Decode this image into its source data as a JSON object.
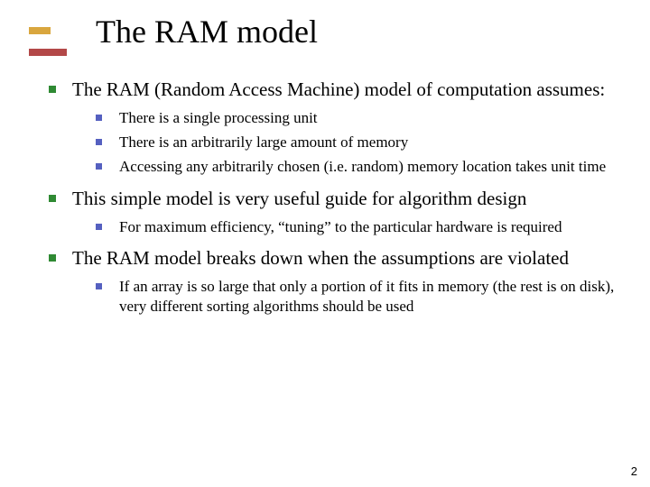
{
  "colors": {
    "bullet_lvl1": "#2f8a33",
    "bullet_lvl2": "#5560c0",
    "accent_bar1": "#d9a63e",
    "accent_bar2": "#b34848",
    "text": "#000000",
    "background": "#ffffff"
  },
  "typography": {
    "title_fontsize": 36,
    "lvl1_fontsize": 21,
    "lvl2_fontsize": 17,
    "font_family": "Times New Roman"
  },
  "title": "The RAM model",
  "bullets": [
    {
      "text": "The RAM (Random Access Machine) model of computation assumes:",
      "children": [
        {
          "text": "There is a single processing unit"
        },
        {
          "text": "There is an arbitrarily large amount of memory"
        },
        {
          "text": "Accessing any arbitrarily chosen (i.e. random) memory location takes unit time"
        }
      ]
    },
    {
      "text": "This simple model is very useful guide for algorithm design",
      "children": [
        {
          "text": "For maximum efficiency, “tuning” to the particular hardware is required"
        }
      ]
    },
    {
      "text": "The RAM model breaks down when the assumptions are violated",
      "children": [
        {
          "text": "If an array is so large that only a portion of it fits in memory (the rest is on disk), very different sorting algorithms should be used"
        }
      ]
    }
  ],
  "page_number": "2"
}
